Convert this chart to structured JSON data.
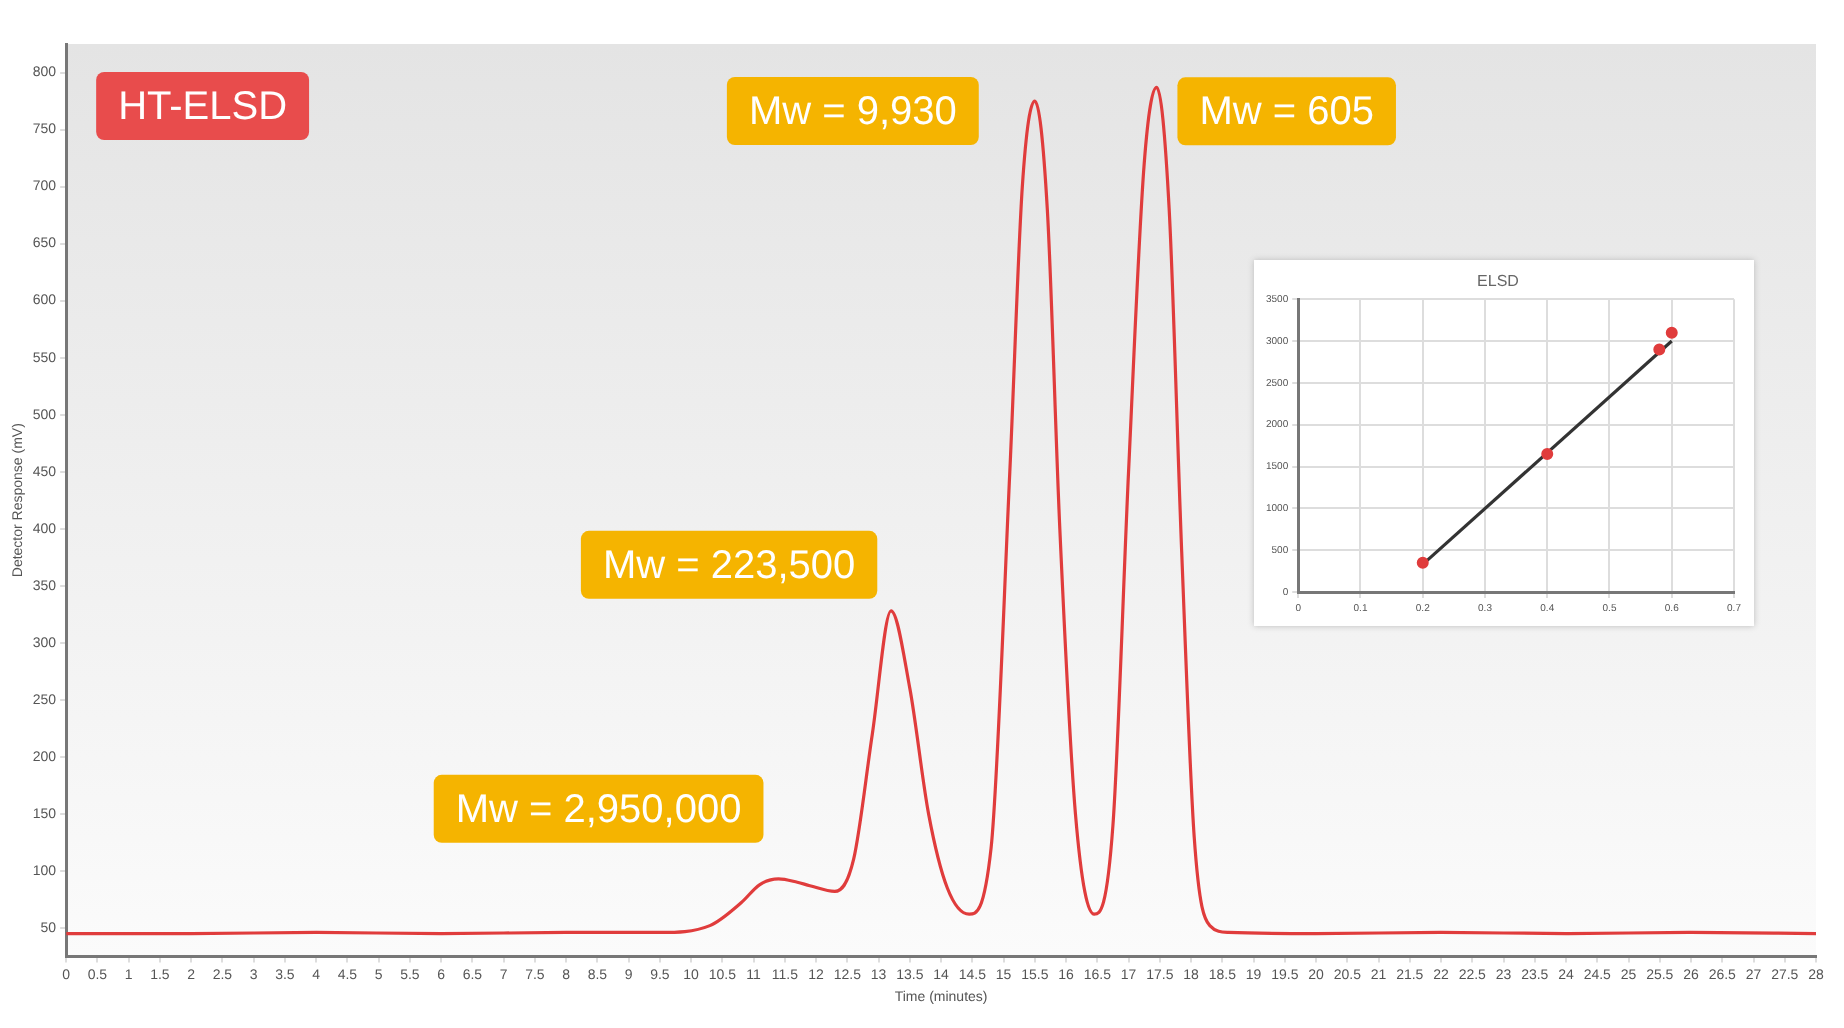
{
  "chart_data": [
    {
      "type": "line",
      "xlabel": "Time (minutes)",
      "ylabel": "Detector Response (mV)",
      "color": "#e03c3c",
      "marker": "none",
      "line_style": "solid",
      "x": [
        0,
        2,
        4,
        6,
        8,
        9.5,
        10.3,
        10.8,
        11.1,
        11.4,
        11.7,
        11.9,
        12.3,
        12.6,
        12.9,
        13.2,
        13.5,
        13.8,
        14.1,
        14.45,
        14.8,
        15.1,
        15.3,
        15.5,
        15.7,
        15.9,
        16.15,
        16.45,
        16.75,
        17.0,
        17.25,
        17.45,
        17.65,
        17.85,
        18.05,
        18.3,
        18.6,
        20,
        22,
        24,
        26,
        28
      ],
      "values": [
        45,
        45,
        46,
        45,
        46,
        46,
        52,
        72,
        88,
        93,
        90,
        87,
        82,
        110,
        220,
        328,
        260,
        150,
        85,
        62,
        120,
        450,
        700,
        775,
        680,
        400,
        150,
        62,
        140,
        450,
        720,
        787,
        680,
        380,
        130,
        52,
        46,
        45,
        46,
        45,
        46,
        45
      ],
      "xlim": [
        0,
        28
      ],
      "xticks": [
        0,
        0.5,
        1,
        1.5,
        2,
        2.5,
        3,
        3.5,
        4,
        4.5,
        5,
        5.5,
        6,
        6.5,
        7,
        7.5,
        8,
        8.5,
        9,
        9.5,
        10,
        10.5,
        11,
        11.5,
        12,
        12.5,
        13,
        13.5,
        14,
        14.5,
        15,
        15.5,
        16,
        16.5,
        17,
        17.5,
        18,
        18.5,
        19,
        19.5,
        20,
        20.5,
        21,
        21.5,
        22,
        22.5,
        23,
        23.5,
        24,
        24.5,
        25,
        25.5,
        26,
        26.5,
        27,
        27.5,
        28
      ],
      "ylim": [
        25,
        825
      ],
      "yticks": [
        50,
        100,
        150,
        200,
        250,
        300,
        350,
        400,
        450,
        500,
        550,
        600,
        650,
        700,
        750,
        800
      ],
      "grid": false,
      "annotations": [
        "HT-ELSD",
        {
          "text": "Mw = 2,950,000",
          "x": 11.4,
          "y": 93
        },
        {
          "text": "Mw = 223,500",
          "x": 13.2,
          "y": 328
        },
        {
          "text": "Mw = 9,930",
          "x": 15.5,
          "y": 775
        },
        {
          "text": "Mw = 605",
          "x": 17.45,
          "y": 787
        }
      ]
    },
    {
      "type": "scatter",
      "title": "ELSD",
      "grid": true,
      "series": [
        {
          "type": "scatter",
          "color": "#e03c3c",
          "marker": "circle",
          "x": [
            0.2,
            0.4,
            0.58,
            0.6
          ],
          "values": [
            350,
            1650,
            2900,
            3100
          ]
        },
        {
          "type": "line",
          "color": "#333333",
          "marker": "none",
          "x": [
            0.2,
            0.6
          ],
          "values": [
            330,
            3000
          ]
        }
      ],
      "xlim": [
        0,
        0.7
      ],
      "xticks": [
        0,
        0.1,
        0.2,
        0.3,
        0.4,
        0.5,
        0.6,
        0.7
      ],
      "ylim": [
        0,
        3500
      ],
      "yticks": [
        0,
        500,
        1000,
        1500,
        2000,
        2500,
        3000,
        3500
      ]
    }
  ]
}
